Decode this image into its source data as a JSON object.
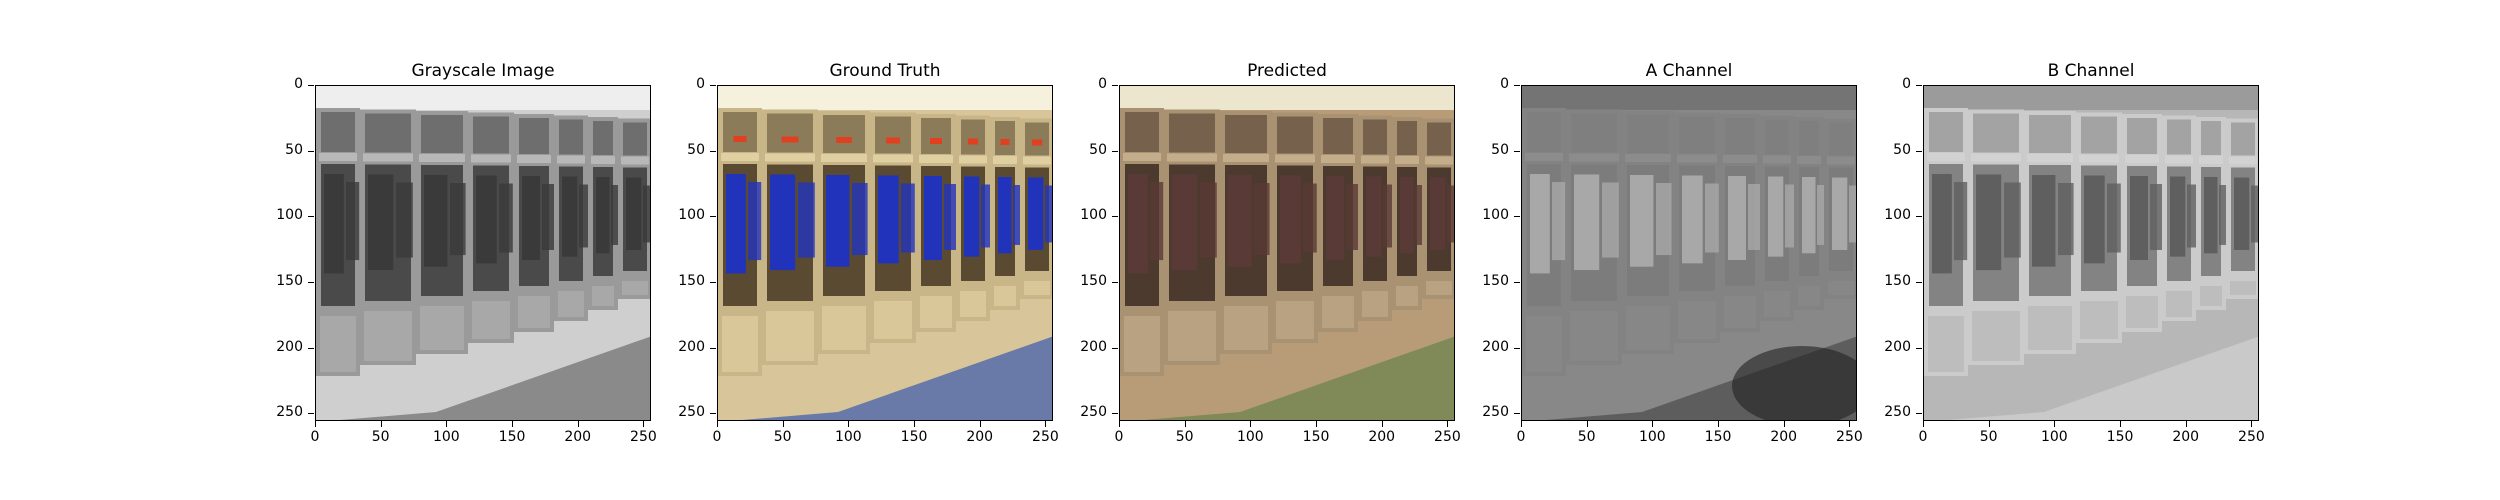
{
  "panels": [
    {
      "title": "Grayscale Image",
      "kind": "grayscale"
    },
    {
      "title": "Ground Truth",
      "kind": "truth"
    },
    {
      "title": "Predicted",
      "kind": "predicted"
    },
    {
      "title": "A Channel",
      "kind": "achannel"
    },
    {
      "title": "B Channel",
      "kind": "bchannel"
    }
  ],
  "axis": {
    "y_ticks": [
      "0",
      "50",
      "100",
      "150",
      "200",
      "250"
    ],
    "x_ticks": [
      "0",
      "50",
      "100",
      "150",
      "200",
      "250"
    ],
    "range": [
      0,
      255
    ]
  },
  "colors": {
    "truth_jersey": "#2233bb",
    "truth_wood": "#d8c69a",
    "predicted_wood": "#b89c78",
    "predicted_floor": "#7f8a58"
  }
}
